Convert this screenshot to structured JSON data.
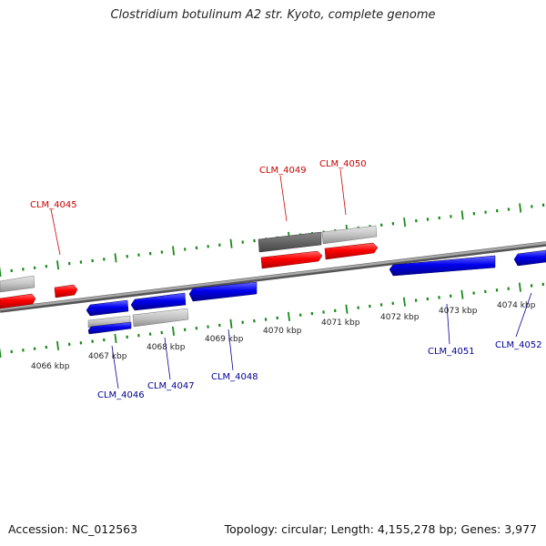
{
  "title": "Clostridium botulinum A2 str. Kyoto, complete genome",
  "footer": {
    "accession": "Accession: NC_012563",
    "summary": "Topology: circular; Length: 4,155,278 bp; Genes: 3,977"
  },
  "colors": {
    "backbone": "#8c8c8c",
    "tick": "#1a8a1a",
    "forward_gene": "#ff0000",
    "reverse_gene": "#0000ee",
    "rna_or_other": "#c4c4c4",
    "dark_feature": "#666666"
  },
  "scale_labels": [
    "4066 kbp",
    "4067 kbp",
    "4068 kbp",
    "4069 kbp",
    "4070 kbp",
    "4071 kbp",
    "4072 kbp",
    "4073 kbp",
    "4074 kbp"
  ],
  "gene_labels": {
    "forward": [
      "CLM_4045",
      "CLM_4049",
      "CLM_4050"
    ],
    "reverse": [
      "CLM_4046",
      "CLM_4047",
      "CLM_4048",
      "CLM_4051",
      "CLM_4052"
    ]
  }
}
